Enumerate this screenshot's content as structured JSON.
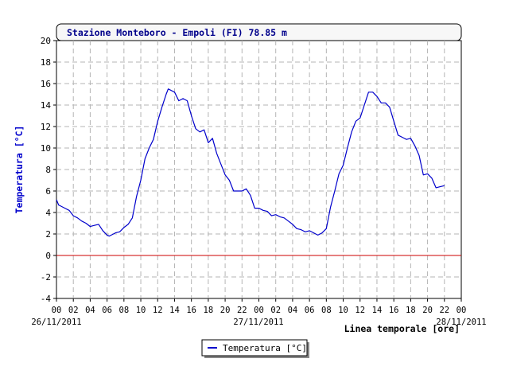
{
  "chart_data": {
    "type": "line",
    "title": "Stazione Monteboro - Empoli (FI) 78.85 m",
    "xlabel": "Linea temporale [ore]",
    "ylabel": "Temperatura [°C]",
    "ylim": [
      -4,
      20
    ],
    "yticks": [
      "-4",
      "-2",
      "0",
      "2",
      "4",
      "6",
      "8",
      "10",
      "12",
      "14",
      "16",
      "18",
      "20"
    ],
    "xlim": [
      0,
      48
    ],
    "xticks": [
      "00",
      "02",
      "04",
      "06",
      "08",
      "10",
      "12",
      "14",
      "16",
      "18",
      "20",
      "22",
      "00",
      "02",
      "04",
      "06",
      "08",
      "10",
      "12",
      "14",
      "16",
      "18",
      "20",
      "22",
      "00"
    ],
    "date_labels": [
      "26/11/2011",
      "27/11/2011",
      "28/11/2011"
    ],
    "grid": true,
    "legend_position": "bottom-center",
    "reference_line": 0,
    "series": [
      {
        "name": "Temperatura [°C]",
        "color": "#0000cc",
        "x": [
          0,
          0.25,
          0.5,
          1,
          1.5,
          2,
          2.5,
          3,
          3.5,
          4,
          4.5,
          5,
          5.5,
          6,
          6.25,
          6.5,
          7,
          7.5,
          8,
          8.5,
          9,
          9.5,
          10,
          10.5,
          11,
          11.5,
          12,
          12.5,
          13,
          13.25,
          13.5,
          14,
          14.5,
          15,
          15.5,
          16,
          16.5,
          17,
          17.5,
          18,
          18.5,
          19,
          19.5,
          20,
          20.5,
          21,
          21.5,
          22,
          22.5,
          23,
          23.5,
          24,
          24.5,
          25,
          25.5,
          26,
          26.5,
          27,
          27.5,
          28,
          28.5,
          29,
          29.5,
          30,
          30.5,
          31,
          31.5,
          32,
          32.5,
          33,
          33.5,
          34,
          34.5,
          35,
          35.5,
          36,
          36.5,
          37,
          37.5,
          38,
          38.5,
          39,
          39.5,
          40,
          40.5,
          41,
          41.5,
          42,
          42.5,
          43,
          43.5,
          44,
          44.5,
          45,
          45.5,
          46
        ],
        "y": [
          5.2,
          4.7,
          4.6,
          4.4,
          4.2,
          3.7,
          3.5,
          3.2,
          3.0,
          2.7,
          2.8,
          2.9,
          2.3,
          1.9,
          1.8,
          1.9,
          2.1,
          2.2,
          2.6,
          2.9,
          3.5,
          5.5,
          7.0,
          9.0,
          10.0,
          10.8,
          12.5,
          13.8,
          15.0,
          15.5,
          15.4,
          15.2,
          14.4,
          14.6,
          14.4,
          13.0,
          11.8,
          11.5,
          11.7,
          10.5,
          10.9,
          9.5,
          8.5,
          7.5,
          7.0,
          6.0,
          6.0,
          6.0,
          6.2,
          5.6,
          4.4,
          4.4,
          4.2,
          4.1,
          3.7,
          3.8,
          3.6,
          3.5,
          3.2,
          2.9,
          2.5,
          2.4,
          2.2,
          2.3,
          2.1,
          1.9,
          2.1,
          2.5,
          4.5,
          6.0,
          7.6,
          8.4,
          10.0,
          11.5,
          12.5,
          12.8,
          14.0,
          15.2,
          15.2,
          14.8,
          14.2,
          14.2,
          13.8,
          12.5,
          11.2,
          11.0,
          10.8,
          10.9,
          10.2,
          9.3,
          7.5,
          7.6,
          7.2,
          6.3,
          6.4,
          6.5
        ]
      }
    ]
  }
}
